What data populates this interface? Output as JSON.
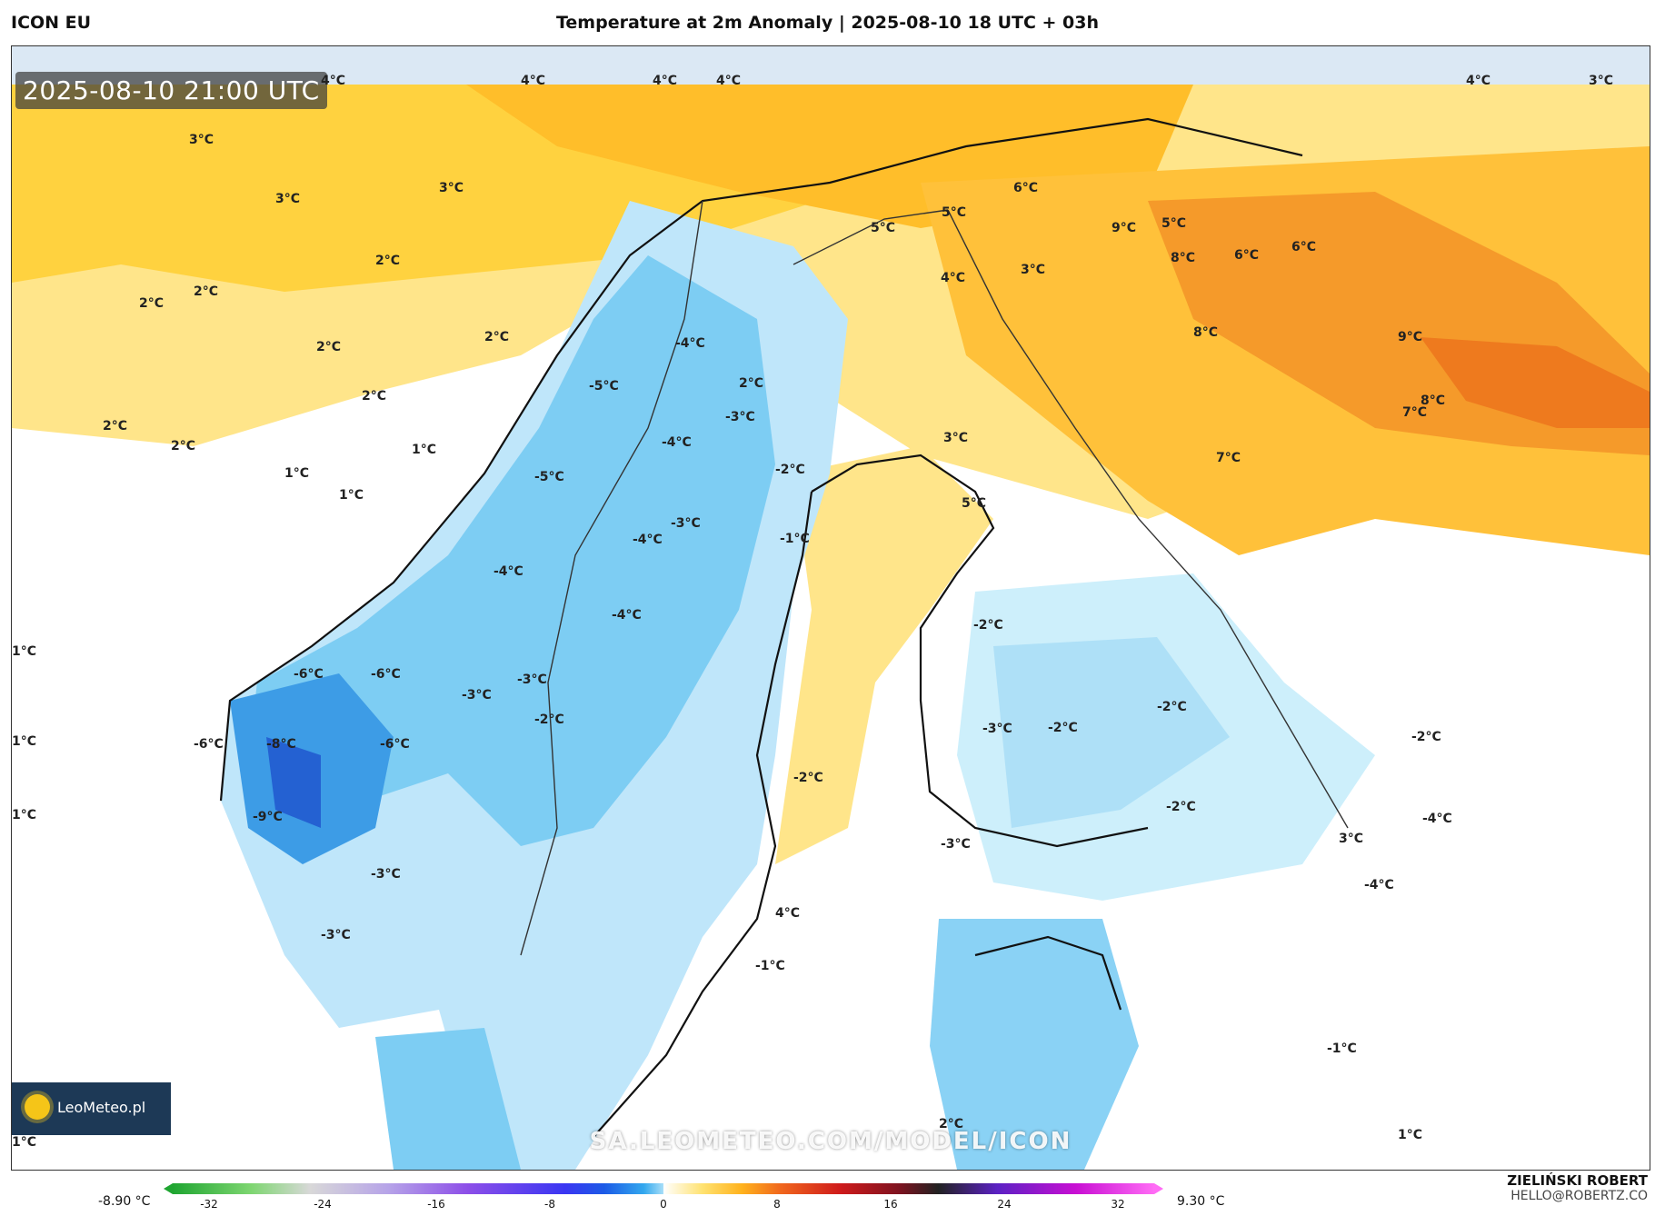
{
  "header": {
    "model": "ICON EU",
    "title": "Temperature at 2m Anomaly | 2025-08-10 18 UTC + 03h"
  },
  "map": {
    "timestamp": "2025-08-10 21:00 UTC",
    "website": "SA.LEOMETEO.COM/MODEL/ICON",
    "logo": "LeoMeteo.pl",
    "labels": [
      {
        "t": "4°C"
      },
      {
        "t": "4°C"
      },
      {
        "t": "4°C"
      },
      {
        "t": "4°C"
      },
      {
        "t": "4°C"
      },
      {
        "t": "3°C"
      },
      {
        "t": "3°C"
      },
      {
        "t": "3°C"
      },
      {
        "t": "3°C"
      },
      {
        "t": "2°C"
      },
      {
        "t": "2°C"
      },
      {
        "t": "2°C"
      },
      {
        "t": "2°C"
      },
      {
        "t": "2°C"
      },
      {
        "t": "2°C"
      },
      {
        "t": "2°C"
      },
      {
        "t": "2°C"
      },
      {
        "t": "1°C"
      },
      {
        "t": "1°C"
      },
      {
        "t": "1°C"
      },
      {
        "t": "1°C"
      },
      {
        "t": "1°C"
      },
      {
        "t": "1°C"
      },
      {
        "t": "1°C"
      },
      {
        "t": "-5°C"
      },
      {
        "t": "-4°C"
      },
      {
        "t": "-3°C"
      },
      {
        "t": "-4°C"
      },
      {
        "t": "-2°C"
      },
      {
        "t": "-1°C"
      },
      {
        "t": "-5°C"
      },
      {
        "t": "-3°C"
      },
      {
        "t": "-4°C"
      },
      {
        "t": "-4°C"
      },
      {
        "t": "-4°C"
      },
      {
        "t": "-6°C"
      },
      {
        "t": "-6°C"
      },
      {
        "t": "-8°C"
      },
      {
        "t": "-6°C"
      },
      {
        "t": "-6°C"
      },
      {
        "t": "-9°C"
      },
      {
        "t": "-3°C"
      },
      {
        "t": "-3°C"
      },
      {
        "t": "-2°C"
      },
      {
        "t": "-3°C"
      },
      {
        "t": "-3°C"
      },
      {
        "t": "-2°C"
      },
      {
        "t": "-1°C"
      },
      {
        "t": "5°C"
      },
      {
        "t": "5°C"
      },
      {
        "t": "5°C"
      },
      {
        "t": "6°C"
      },
      {
        "t": "9°C"
      },
      {
        "t": "8°C"
      },
      {
        "t": "6°C"
      },
      {
        "t": "8°C"
      },
      {
        "t": "9°C"
      },
      {
        "t": "8°C"
      },
      {
        "t": "7°C"
      },
      {
        "t": "7°C"
      },
      {
        "t": "6°C"
      },
      {
        "t": "5°C"
      },
      {
        "t": "4°C"
      },
      {
        "t": "3°C"
      },
      {
        "t": "3°C"
      },
      {
        "t": "2°C"
      },
      {
        "t": "-2°C"
      },
      {
        "t": "-3°C"
      },
      {
        "t": "-2°C"
      },
      {
        "t": "-2°C"
      },
      {
        "t": "-4°C"
      },
      {
        "t": "-2°C"
      },
      {
        "t": "-1°C"
      },
      {
        "t": "2°C"
      },
      {
        "t": "1°C"
      },
      {
        "t": "-3°C"
      },
      {
        "t": "-2°C"
      },
      {
        "t": "4°C"
      },
      {
        "t": "3°C"
      },
      {
        "t": "-4°C"
      }
    ]
  },
  "legend": {
    "min": "-8.90 °C",
    "max": "9.30 °C",
    "ticks": [
      "-32",
      "-24",
      "-16",
      "-8",
      "0",
      "8",
      "16",
      "24",
      "32"
    ]
  },
  "author": {
    "name": "ZIELIŃSKI ROBERT",
    "email": "HELLO@ROBERTZ.CO"
  },
  "colors": {
    "warm_high": "#f58a1f",
    "warm_mid": "#ffbf2a",
    "warm_low": "#ffe58a",
    "cold_mid": "#5bc0f0",
    "cold_high": "#2a7fe0"
  }
}
